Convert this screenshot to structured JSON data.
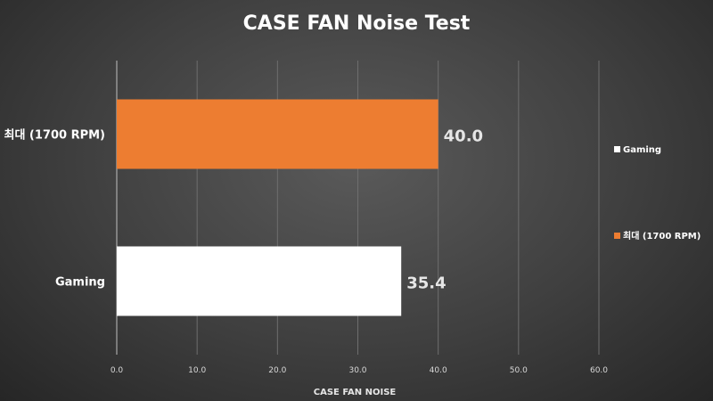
{
  "chart_data": {
    "type": "bar",
    "orientation": "horizontal",
    "title": "CASE FAN Noise Test",
    "xlabel": "CASE FAN NOISE",
    "ylabel": "",
    "xlim": [
      0,
      60
    ],
    "xticks": [
      "0.0",
      "10.0",
      "20.0",
      "30.0",
      "40.0",
      "50.0",
      "60.0"
    ],
    "grid": true,
    "legend_position": "right",
    "categories_top_to_bottom": [
      "최대 (1700 RPM)",
      "Gaming"
    ],
    "series": [
      {
        "name": "최대 (1700 RPM)",
        "category": "최대 (1700 RPM)",
        "value": 40.0,
        "label": "40.0",
        "color": "#ED7D31"
      },
      {
        "name": "Gaming",
        "category": "Gaming",
        "value": 35.4,
        "label": "35.4",
        "color": "#FFFFFF"
      }
    ],
    "legend": [
      {
        "label": "Gaming",
        "color": "#FFFFFF"
      },
      {
        "label": "최대 (1700 RPM)",
        "color": "#ED7D31"
      }
    ]
  }
}
